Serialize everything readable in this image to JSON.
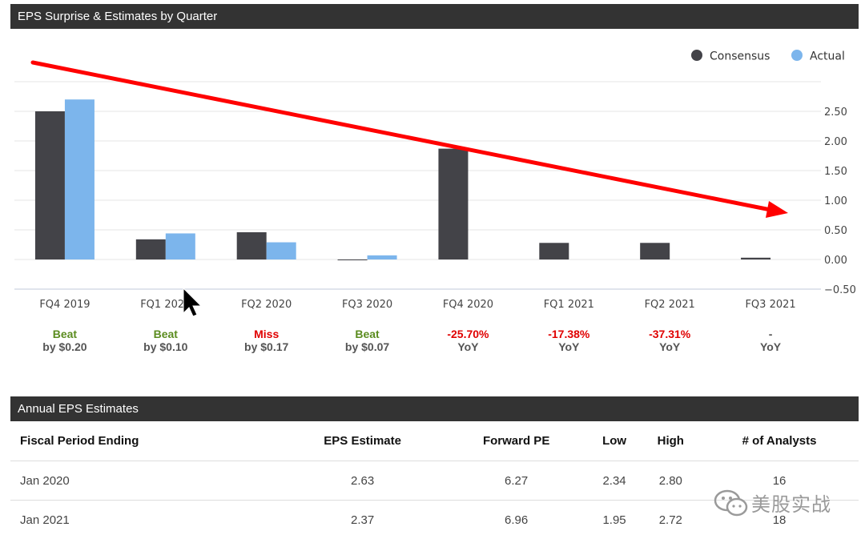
{
  "eps_panel": {
    "title": "EPS Surprise & Estimates by Quarter"
  },
  "annual_panel": {
    "title": "Annual EPS Estimates"
  },
  "colors": {
    "consensus": "#434348",
    "actual": "#7cb5ec",
    "beat": "#5b8c1f",
    "miss": "#e00000",
    "header_bg": "#333333",
    "trend_arrow": "#ff0000"
  },
  "chart_data": {
    "type": "bar",
    "categories": [
      "FQ4 2019",
      "FQ1 2020",
      "FQ2 2020",
      "FQ3 2020",
      "FQ4 2020",
      "FQ1 2021",
      "FQ2 2021",
      "FQ3 2021"
    ],
    "series": [
      {
        "name": "Consensus",
        "values": [
          2.5,
          0.34,
          0.46,
          -0.01,
          1.87,
          0.28,
          0.28,
          0.03
        ]
      },
      {
        "name": "Actual",
        "values": [
          2.7,
          0.44,
          0.29,
          0.07,
          null,
          null,
          null,
          null
        ]
      }
    ],
    "yticks": [
      "2.50",
      "2.00",
      "1.50",
      "1.00",
      "0.50",
      "0.00",
      "−0.50"
    ],
    "ylim": [
      -0.5,
      3.0
    ],
    "legend": [
      "Consensus",
      "Actual"
    ],
    "legend_position": "top-right",
    "grid": true,
    "annotation": "red downward trend arrow"
  },
  "surprises": [
    {
      "top": "Beat",
      "bottom": "by $0.20",
      "status": "beat"
    },
    {
      "top": "Beat",
      "bottom": "by $0.10",
      "status": "beat"
    },
    {
      "top": "Miss",
      "bottom": "by $0.17",
      "status": "miss"
    },
    {
      "top": "Beat",
      "bottom": "by $0.07",
      "status": "beat"
    },
    {
      "top": "-25.70%",
      "bottom": "YoY",
      "status": "miss"
    },
    {
      "top": "-17.38%",
      "bottom": "YoY",
      "status": "miss"
    },
    {
      "top": "-37.31%",
      "bottom": "YoY",
      "status": "miss"
    },
    {
      "top": "-",
      "bottom": "YoY",
      "status": "neutral"
    }
  ],
  "annual_table": {
    "headers": [
      "Fiscal Period Ending",
      "EPS Estimate",
      "Forward PE",
      "Low",
      "High",
      "# of Analysts"
    ],
    "rows": [
      [
        "Jan 2020",
        "2.63",
        "6.27",
        "2.34",
        "2.80",
        "16"
      ],
      [
        "Jan 2021",
        "2.37",
        "6.96",
        "1.95",
        "2.72",
        "18"
      ]
    ]
  },
  "watermark": {
    "text": "美股实战"
  }
}
